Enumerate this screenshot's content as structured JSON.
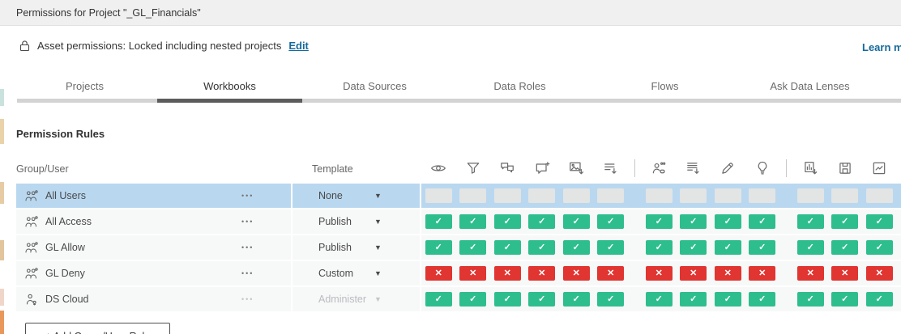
{
  "window": {
    "title": "Permissions for Project \"_GL_Financials\""
  },
  "asset_permissions": {
    "text": "Asset permissions: Locked including nested projects",
    "edit_link": "Edit",
    "learn_more_link": "Learn more"
  },
  "tabs": [
    {
      "label": "Projects",
      "active": false
    },
    {
      "label": "Workbooks",
      "active": true
    },
    {
      "label": "Data Sources",
      "active": false
    },
    {
      "label": "Data Roles",
      "active": false
    },
    {
      "label": "Flows",
      "active": false
    },
    {
      "label": "Ask Data Lenses",
      "active": false
    }
  ],
  "section": {
    "heading": "Permission Rules"
  },
  "table": {
    "group_user_header": "Group/User",
    "template_header": "Template",
    "capability_columns": [
      {
        "name": "view"
      },
      {
        "name": "filter"
      },
      {
        "name": "view-comments"
      },
      {
        "name": "add-comments"
      },
      {
        "name": "download-image-pdf"
      },
      {
        "name": "download-summary-data"
      },
      {
        "name": "share-customized"
      },
      {
        "name": "download-full-data"
      },
      {
        "name": "web-edit"
      },
      {
        "name": "run-explain-data"
      },
      {
        "name": "download-workbook"
      },
      {
        "name": "overwrite"
      },
      {
        "name": "create-refresh-metrics"
      }
    ],
    "separators_after": [
      5,
      9,
      12
    ],
    "rows": [
      {
        "name": "All Users",
        "icon": "group",
        "menu": "•••",
        "template": "None",
        "selected": true,
        "disabled": false,
        "cells": [
          "none",
          "none",
          "none",
          "none",
          "none",
          "none",
          "none",
          "none",
          "none",
          "none",
          "none",
          "none",
          "none"
        ]
      },
      {
        "name": "All Access",
        "icon": "group",
        "menu": "•••",
        "template": "Publish",
        "selected": false,
        "disabled": false,
        "cells": [
          "allow",
          "allow",
          "allow",
          "allow",
          "allow",
          "allow",
          "allow",
          "allow",
          "allow",
          "allow",
          "allow",
          "allow",
          "allow"
        ]
      },
      {
        "name": "GL Allow",
        "icon": "group",
        "menu": "•••",
        "template": "Publish",
        "selected": false,
        "disabled": false,
        "cells": [
          "allow",
          "allow",
          "allow",
          "allow",
          "allow",
          "allow",
          "allow",
          "allow",
          "allow",
          "allow",
          "allow",
          "allow",
          "allow"
        ]
      },
      {
        "name": "GL Deny",
        "icon": "group",
        "menu": "•••",
        "template": "Custom",
        "selected": false,
        "disabled": false,
        "cells": [
          "deny",
          "deny",
          "deny",
          "deny",
          "deny",
          "deny",
          "deny",
          "deny",
          "deny",
          "deny",
          "deny",
          "deny",
          "deny"
        ]
      },
      {
        "name": "DS Cloud",
        "icon": "user",
        "menu": "•••",
        "template": "Administer",
        "selected": false,
        "disabled": true,
        "cells": [
          "allow",
          "allow",
          "allow",
          "allow",
          "allow",
          "allow",
          "allow",
          "allow",
          "allow",
          "allow",
          "allow",
          "allow",
          "allow"
        ]
      }
    ]
  },
  "add_rule_button": {
    "label": "+ Add Group/User Rule"
  },
  "symbols": {
    "allow": "✓",
    "deny": "✕"
  },
  "colors": {
    "allow": "#2EBE8E",
    "deny": "#E03531",
    "selected_row": "#B9D8F0",
    "empty_cell": "#E3E4E4",
    "link": "#15699B",
    "active_tab_indicator": "#5C5C5C"
  }
}
